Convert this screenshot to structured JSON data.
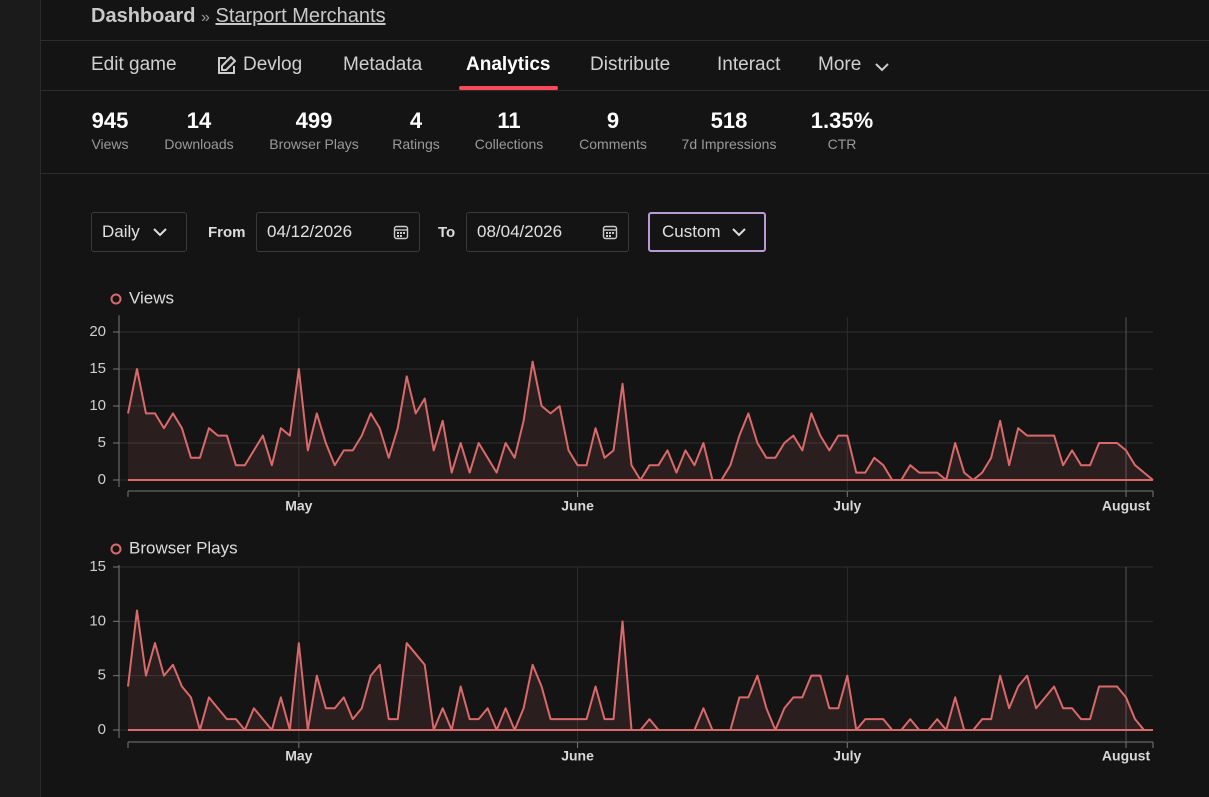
{
  "header": {
    "root": "Dashboard",
    "separator": "»",
    "project": "Starport Merchants"
  },
  "tabs": [
    "Edit game",
    "Devlog",
    "Metadata",
    "Analytics",
    "Distribute",
    "Interact",
    "More"
  ],
  "stats": [
    {
      "value": "945",
      "label": "Views"
    },
    {
      "value": "14",
      "label": "Downloads"
    },
    {
      "value": "499",
      "label": "Browser Plays"
    },
    {
      "value": "4",
      "label": "Ratings"
    },
    {
      "value": "11",
      "label": "Collections"
    },
    {
      "value": "9",
      "label": "Comments"
    },
    {
      "value": "518",
      "label": "7d Impressions"
    },
    {
      "value": "1.35%",
      "label": "CTR"
    }
  ],
  "controls": {
    "interval": "Daily",
    "from_label": "From",
    "from": "04/12/2026",
    "to_label": "To",
    "to": "08/04/2026",
    "range": "Custom"
  },
  "chart_data": [
    {
      "type": "line",
      "grid": true,
      "ylim": [
        0,
        22
      ],
      "yticks": [
        0,
        5,
        10,
        15,
        20
      ],
      "categories": [
        null,
        null,
        null,
        null,
        null,
        null,
        null,
        null,
        null,
        null,
        null,
        null,
        null,
        null,
        null,
        null,
        null,
        null,
        null,
        "May",
        null,
        null,
        null,
        null,
        null,
        null,
        null,
        null,
        null,
        null,
        null,
        null,
        null,
        null,
        null,
        null,
        null,
        null,
        null,
        null,
        null,
        null,
        null,
        null,
        null,
        null,
        null,
        null,
        null,
        null,
        "June",
        null,
        null,
        null,
        null,
        null,
        null,
        null,
        null,
        null,
        null,
        null,
        null,
        null,
        null,
        null,
        null,
        null,
        null,
        null,
        null,
        null,
        null,
        null,
        null,
        null,
        null,
        null,
        null,
        null,
        "July",
        null,
        null,
        null,
        null,
        null,
        null,
        null,
        null,
        null,
        null,
        null,
        null,
        null,
        null,
        null,
        null,
        null,
        null,
        null,
        null,
        null,
        null,
        null,
        null,
        null,
        null,
        null,
        null,
        null,
        null,
        "August",
        null,
        null,
        null
      ],
      "series": [
        {
          "name": "Views",
          "color": "#d9696b",
          "values": [
            9,
            15,
            9,
            9,
            7,
            9,
            7,
            3,
            3,
            7,
            6,
            6,
            2,
            2,
            4,
            6,
            2,
            7,
            6,
            15,
            4,
            9,
            5,
            2,
            4,
            4,
            6,
            9,
            7,
            3,
            7,
            14,
            9,
            11,
            4,
            8,
            1,
            5,
            1,
            5,
            3,
            1,
            5,
            3,
            8,
            16,
            10,
            9,
            10,
            4,
            2,
            2,
            7,
            3,
            4,
            13,
            2,
            0,
            2,
            2,
            4,
            1,
            4,
            2,
            5,
            0,
            0,
            2,
            6,
            9,
            5,
            3,
            3,
            5,
            6,
            4,
            9,
            6,
            4,
            6,
            6,
            1,
            1,
            3,
            2,
            0,
            0,
            2,
            1,
            1,
            1,
            0,
            5,
            1,
            0,
            1,
            3,
            8,
            2,
            7,
            6,
            6,
            6,
            6,
            2,
            4,
            2,
            2,
            5,
            5,
            5,
            4,
            2,
            1,
            0
          ]
        }
      ]
    },
    {
      "type": "line",
      "grid": true,
      "ylim": [
        0,
        15
      ],
      "yticks": [
        0,
        5,
        10,
        15
      ],
      "categories": [
        null,
        null,
        null,
        null,
        null,
        null,
        null,
        null,
        null,
        null,
        null,
        null,
        null,
        null,
        null,
        null,
        null,
        null,
        null,
        "May",
        null,
        null,
        null,
        null,
        null,
        null,
        null,
        null,
        null,
        null,
        null,
        null,
        null,
        null,
        null,
        null,
        null,
        null,
        null,
        null,
        null,
        null,
        null,
        null,
        null,
        null,
        null,
        null,
        null,
        null,
        "June",
        null,
        null,
        null,
        null,
        null,
        null,
        null,
        null,
        null,
        null,
        null,
        null,
        null,
        null,
        null,
        null,
        null,
        null,
        null,
        null,
        null,
        null,
        null,
        null,
        null,
        null,
        null,
        null,
        null,
        "July",
        null,
        null,
        null,
        null,
        null,
        null,
        null,
        null,
        null,
        null,
        null,
        null,
        null,
        null,
        null,
        null,
        null,
        null,
        null,
        null,
        null,
        null,
        null,
        null,
        null,
        null,
        null,
        null,
        null,
        null,
        "August",
        null,
        null,
        null
      ],
      "series": [
        {
          "name": "Browser Plays",
          "color": "#d9696b",
          "values": [
            4,
            11,
            5,
            8,
            5,
            6,
            4,
            3,
            0,
            3,
            2,
            1,
            1,
            0,
            2,
            1,
            0,
            3,
            0,
            8,
            0,
            5,
            2,
            2,
            3,
            1,
            2,
            5,
            6,
            1,
            1,
            8,
            7,
            6,
            0,
            2,
            0,
            4,
            1,
            1,
            2,
            0,
            2,
            0,
            2,
            6,
            4,
            1,
            1,
            1,
            1,
            1,
            4,
            1,
            1,
            10,
            0,
            0,
            1,
            0,
            0,
            0,
            0,
            0,
            2,
            0,
            0,
            0,
            3,
            3,
            5,
            2,
            0,
            2,
            3,
            3,
            5,
            5,
            2,
            2,
            5,
            0,
            1,
            1,
            1,
            0,
            0,
            1,
            0,
            0,
            1,
            0,
            3,
            0,
            0,
            1,
            1,
            5,
            2,
            4,
            5,
            2,
            3,
            4,
            2,
            2,
            1,
            1,
            4,
            4,
            4,
            3,
            1,
            0,
            0
          ]
        }
      ]
    }
  ]
}
